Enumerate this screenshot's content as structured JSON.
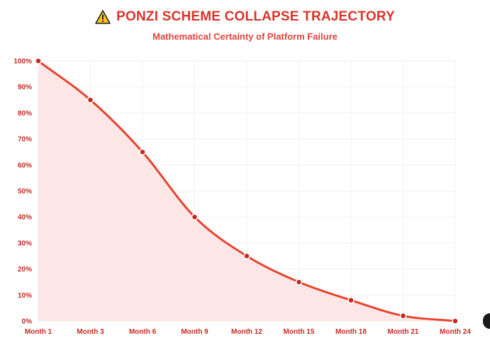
{
  "header": {
    "title": "PONZI SCHEME COLLAPSE TRAJECTORY",
    "subtitle": "Mathematical Certainty of Platform Failure",
    "icon": "warning-icon"
  },
  "colors": {
    "accent": "#d9342b",
    "line": "#e8432f",
    "fill": "#fde7e6",
    "point": "#c62a1f",
    "grid": "#f1f1f1"
  },
  "chart_data": {
    "type": "area",
    "title": "PONZI SCHEME COLLAPSE TRAJECTORY",
    "subtitle": "Mathematical Certainty of Platform Failure",
    "xlabel": "",
    "ylabel": "",
    "categories": [
      "Month 1",
      "Month 3",
      "Month 6",
      "Month 9",
      "Month 12",
      "Month 15",
      "Month 18",
      "Month 21",
      "Month 24"
    ],
    "values": [
      100,
      85,
      65,
      40,
      25,
      15,
      8,
      2,
      0
    ],
    "ylim": [
      0,
      100
    ],
    "y_ticks": [
      "0%",
      "10%",
      "20%",
      "30%",
      "40%",
      "50%",
      "60%",
      "70%",
      "80%",
      "90%",
      "100%"
    ],
    "grid": true,
    "legend": "none"
  }
}
